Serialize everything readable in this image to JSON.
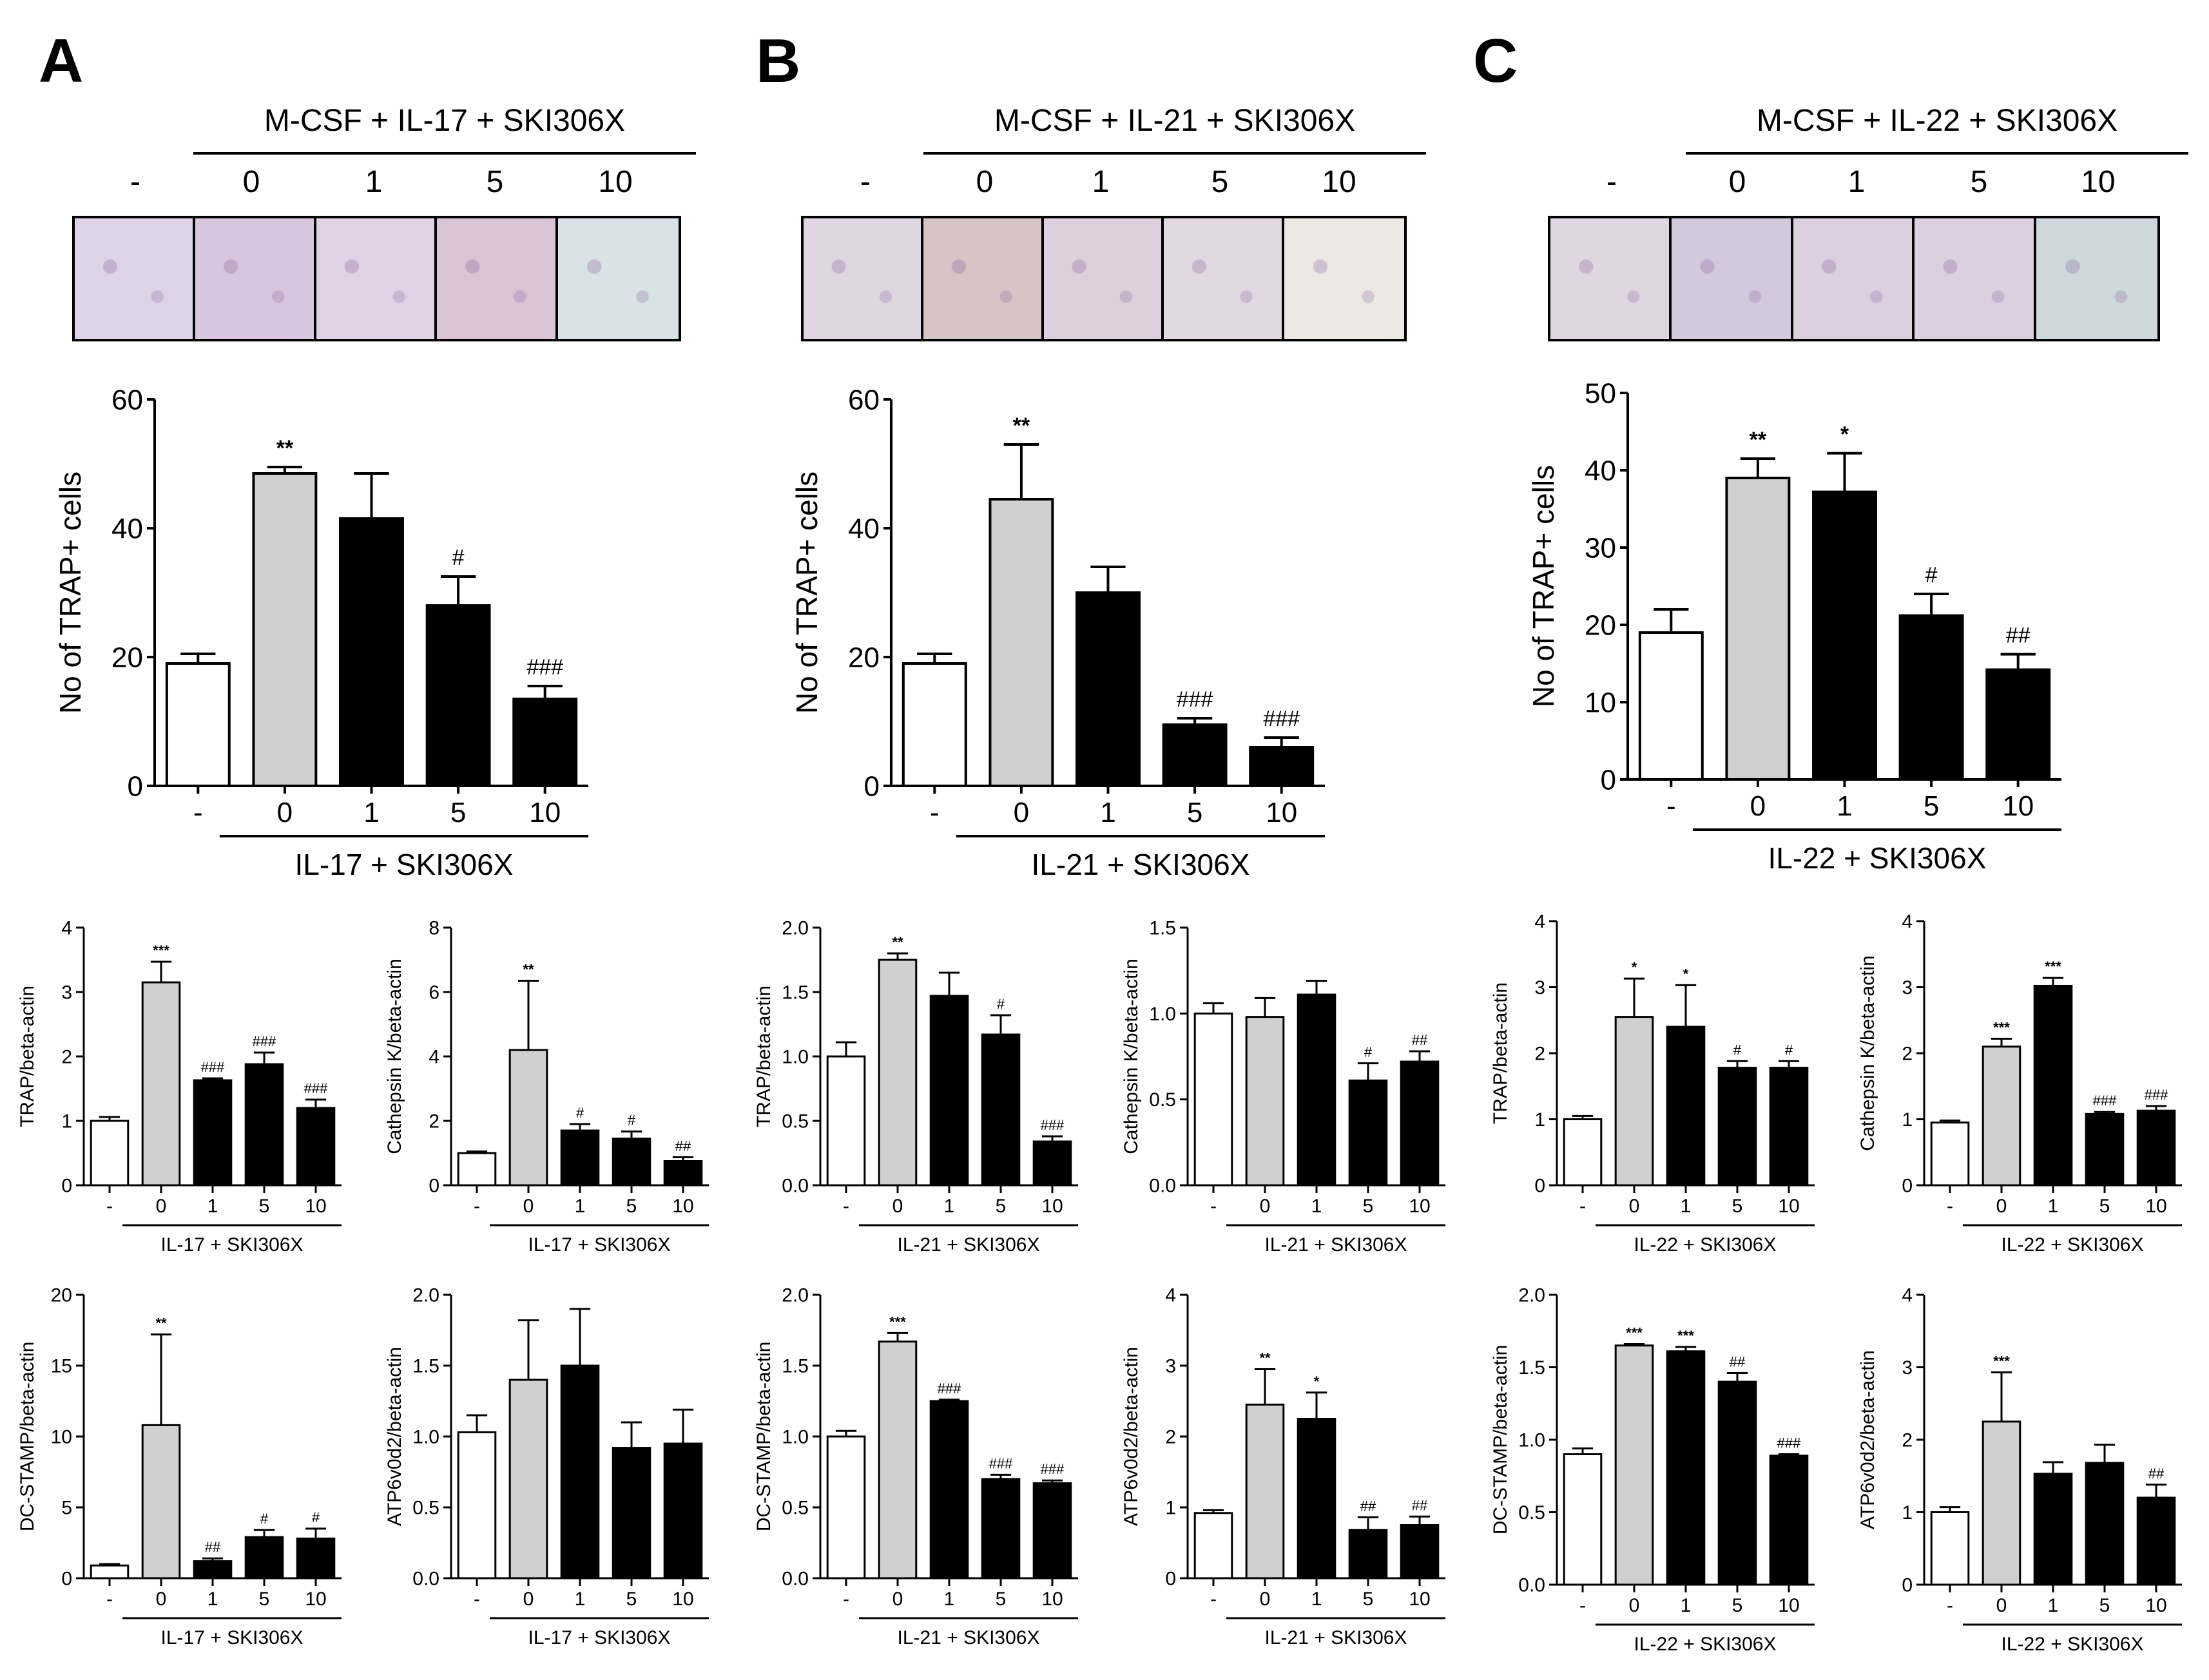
{
  "panels": [
    {
      "label": "A",
      "treatment_title": "M-CSF + IL-17 + SKI306X",
      "dose_headers": [
        "-",
        "0",
        "1",
        "5",
        "10"
      ],
      "micrograph_tints": [
        "#ded2e6",
        "#d8c6de",
        "#e0d2e4",
        "#d9c4d6",
        "#d9e2e6"
      ]
    },
    {
      "label": "B",
      "treatment_title": "M-CSF + IL-21 + SKI306X",
      "dose_headers": [
        "-",
        "0",
        "1",
        "5",
        "10"
      ],
      "micrograph_tints": [
        "#e0d6e2",
        "#d6c4c6",
        "#ddd0dc",
        "#e2d8e0",
        "#ece8e4"
      ]
    },
    {
      "label": "C",
      "treatment_title": "M-CSF + IL-22 + SKI306X",
      "dose_headers": [
        "-",
        "0",
        "1",
        "5",
        "10"
      ],
      "micrograph_tints": [
        "#e0d6e2",
        "#d4c8dc",
        "#dccfe0",
        "#dccfe0",
        "#cfd8dc"
      ]
    }
  ],
  "chart_data": [
    {
      "id": "A-trap-cells",
      "panel": "A",
      "type": "bar",
      "ylabel": "No of TRAP+ cells",
      "ylim": [
        0,
        60
      ],
      "ticks": [
        "0",
        "20",
        "40",
        "60"
      ],
      "categories": [
        "-",
        "0",
        "1",
        "5",
        "10"
      ],
      "values": [
        19,
        48.5,
        41.5,
        28,
        13.5
      ],
      "errors": [
        1.5,
        1,
        7,
        4.5,
        2
      ],
      "annotations": [
        "",
        "**",
        "",
        "#",
        "###"
      ],
      "colors": [
        "white",
        "gray",
        "black",
        "black",
        "black"
      ],
      "xlabel": "IL-17 + SKI306X",
      "size": "large"
    },
    {
      "id": "B-trap-cells",
      "panel": "B",
      "type": "bar",
      "ylabel": "No of TRAP+ cells",
      "ylim": [
        0,
        60
      ],
      "ticks": [
        "0",
        "20",
        "40",
        "60"
      ],
      "categories": [
        "-",
        "0",
        "1",
        "5",
        "10"
      ],
      "values": [
        19,
        44.5,
        30,
        9.5,
        6
      ],
      "errors": [
        1.5,
        8.5,
        4,
        1,
        1.5
      ],
      "annotations": [
        "",
        "**",
        "",
        "###",
        "###"
      ],
      "colors": [
        "white",
        "gray",
        "black",
        "black",
        "black"
      ],
      "xlabel": "IL-21 + SKI306X",
      "size": "large"
    },
    {
      "id": "C-trap-cells",
      "panel": "C",
      "type": "bar",
      "ylabel": "No of TRAP+ cells",
      "ylim": [
        0,
        50
      ],
      "ticks": [
        "0",
        "10",
        "20",
        "30",
        "40",
        "50"
      ],
      "categories": [
        "-",
        "0",
        "1",
        "5",
        "10"
      ],
      "values": [
        19,
        39,
        37.2,
        21.2,
        14.2
      ],
      "errors": [
        3,
        2.5,
        5,
        2.8,
        2
      ],
      "annotations": [
        "",
        "**",
        "*",
        "#",
        "##"
      ],
      "colors": [
        "white",
        "gray",
        "black",
        "black",
        "black"
      ],
      "xlabel": "IL-22 + SKI306X",
      "size": "large"
    },
    {
      "id": "A-trap-mrna",
      "panel": "A",
      "type": "bar",
      "ylabel": "TRAP/beta-actin",
      "ylim": [
        0,
        4
      ],
      "ticks": [
        "0",
        "1",
        "2",
        "3",
        "4"
      ],
      "categories": [
        "-",
        "0",
        "1",
        "5",
        "10"
      ],
      "values": [
        1,
        3.15,
        1.63,
        1.88,
        1.2
      ],
      "errors": [
        0.06,
        0.32,
        0.03,
        0.18,
        0.13
      ],
      "annotations": [
        "",
        "***",
        "###",
        "###",
        "###"
      ],
      "colors": [
        "white",
        "gray",
        "black",
        "black",
        "black"
      ],
      "xlabel": "IL-17 + SKI306X",
      "size": "small"
    },
    {
      "id": "A-cathepsin",
      "panel": "A",
      "type": "bar",
      "ylabel": "Cathepsin K/beta-actin",
      "ylim": [
        0,
        8
      ],
      "ticks": [
        "0",
        "2",
        "4",
        "6",
        "8"
      ],
      "categories": [
        "-",
        "0",
        "1",
        "5",
        "10"
      ],
      "values": [
        1,
        4.2,
        1.7,
        1.45,
        0.75
      ],
      "errors": [
        0.05,
        2.15,
        0.2,
        0.22,
        0.12
      ],
      "annotations": [
        "",
        "**",
        "#",
        "#",
        "##"
      ],
      "colors": [
        "white",
        "gray",
        "black",
        "black",
        "black"
      ],
      "xlabel": "IL-17 + SKI306X",
      "size": "small"
    },
    {
      "id": "A-dcstamp",
      "panel": "A",
      "type": "bar",
      "ylabel": "DC-STAMP/beta-actin",
      "ylim": [
        0,
        20
      ],
      "ticks": [
        "0",
        "5",
        "10",
        "15",
        "20"
      ],
      "categories": [
        "-",
        "0",
        "1",
        "5",
        "10"
      ],
      "values": [
        0.9,
        10.8,
        1.2,
        2.9,
        2.8
      ],
      "errors": [
        0.1,
        6.4,
        0.2,
        0.5,
        0.7
      ],
      "annotations": [
        "",
        "**",
        "##",
        "#",
        "#"
      ],
      "colors": [
        "white",
        "gray",
        "black",
        "black",
        "black"
      ],
      "xlabel": "IL-17 + SKI306X",
      "size": "small"
    },
    {
      "id": "A-atp6v0d2",
      "panel": "A",
      "type": "bar",
      "ylabel": "ATP6v0d2/beta-actin",
      "ylim": [
        0,
        2.0
      ],
      "ticks": [
        "0.0",
        "0.5",
        "1.0",
        "1.5",
        "2.0"
      ],
      "categories": [
        "-",
        "0",
        "1",
        "5",
        "10"
      ],
      "values": [
        1.03,
        1.4,
        1.5,
        0.92,
        0.95
      ],
      "errors": [
        0.12,
        0.42,
        0.4,
        0.18,
        0.24
      ],
      "annotations": [
        "",
        "",
        "",
        "",
        ""
      ],
      "colors": [
        "white",
        "gray",
        "black",
        "black",
        "black"
      ],
      "xlabel": "IL-17 + SKI306X",
      "size": "small"
    },
    {
      "id": "B-trap-mrna",
      "panel": "B",
      "type": "bar",
      "ylabel": "TRAP/beta-actin",
      "ylim": [
        0,
        2.0
      ],
      "ticks": [
        "0.0",
        "0.5",
        "1.0",
        "1.5",
        "2.0"
      ],
      "categories": [
        "-",
        "0",
        "1",
        "5",
        "10"
      ],
      "values": [
        1,
        1.75,
        1.47,
        1.17,
        0.34
      ],
      "errors": [
        0.11,
        0.05,
        0.18,
        0.15,
        0.04
      ],
      "annotations": [
        "",
        "**",
        "",
        "#",
        "###"
      ],
      "colors": [
        "white",
        "gray",
        "black",
        "black",
        "black"
      ],
      "xlabel": "IL-21 + SKI306X",
      "size": "small"
    },
    {
      "id": "B-cathepsin",
      "panel": "B",
      "type": "bar",
      "ylabel": "Cathepsin K/beta-actin",
      "ylim": [
        0,
        1.5
      ],
      "ticks": [
        "0.0",
        "0.5",
        "1.0",
        "1.5"
      ],
      "categories": [
        "-",
        "0",
        "1",
        "5",
        "10"
      ],
      "values": [
        1,
        0.98,
        1.11,
        0.61,
        0.72
      ],
      "errors": [
        0.06,
        0.11,
        0.08,
        0.1,
        0.06
      ],
      "annotations": [
        "",
        "",
        "",
        "#",
        "##"
      ],
      "colors": [
        "white",
        "gray",
        "black",
        "black",
        "black"
      ],
      "xlabel": "IL-21 + SKI306X",
      "size": "small"
    },
    {
      "id": "B-dcstamp",
      "panel": "B",
      "type": "bar",
      "ylabel": "DC-STAMP/beta-actin",
      "ylim": [
        0,
        2.0
      ],
      "ticks": [
        "0.0",
        "0.5",
        "1.0",
        "1.5",
        "2.0"
      ],
      "categories": [
        "-",
        "0",
        "1",
        "5",
        "10"
      ],
      "values": [
        1,
        1.67,
        1.25,
        0.7,
        0.67
      ],
      "errors": [
        0.04,
        0.06,
        0.01,
        0.03,
        0.02
      ],
      "annotations": [
        "",
        "***",
        "###",
        "###",
        "###"
      ],
      "colors": [
        "white",
        "gray",
        "black",
        "black",
        "black"
      ],
      "xlabel": "IL-21 + SKI306X",
      "size": "small"
    },
    {
      "id": "B-atp6v0d2",
      "panel": "B",
      "type": "bar",
      "ylabel": "ATP6v0d2/beta-actin",
      "ylim": [
        0,
        4
      ],
      "ticks": [
        "0",
        "1",
        "2",
        "3",
        "4"
      ],
      "categories": [
        "-",
        "0",
        "1",
        "5",
        "10"
      ],
      "values": [
        0.92,
        2.45,
        2.25,
        0.68,
        0.75
      ],
      "errors": [
        0.04,
        0.5,
        0.37,
        0.18,
        0.12
      ],
      "annotations": [
        "",
        "**",
        "*",
        "##",
        "##"
      ],
      "colors": [
        "white",
        "gray",
        "black",
        "black",
        "black"
      ],
      "xlabel": "IL-21 + SKI306X",
      "size": "small"
    },
    {
      "id": "C-trap-mrna",
      "panel": "C",
      "type": "bar",
      "ylabel": "TRAP/beta-actin",
      "ylim": [
        0,
        4
      ],
      "ticks": [
        "0",
        "1",
        "2",
        "3",
        "4"
      ],
      "categories": [
        "-",
        "0",
        "1",
        "5",
        "10"
      ],
      "values": [
        1,
        2.55,
        2.4,
        1.78,
        1.78
      ],
      "errors": [
        0.05,
        0.58,
        0.63,
        0.1,
        0.1
      ],
      "annotations": [
        "",
        "*",
        "*",
        "#",
        "#"
      ],
      "colors": [
        "white",
        "gray",
        "black",
        "black",
        "black"
      ],
      "xlabel": "IL-22 + SKI306X",
      "size": "small"
    },
    {
      "id": "C-cathepsin",
      "panel": "C",
      "type": "bar",
      "ylabel": "Cathepsin K/beta-actin",
      "ylim": [
        0,
        4
      ],
      "ticks": [
        "0",
        "1",
        "2",
        "3",
        "4"
      ],
      "categories": [
        "-",
        "0",
        "1",
        "5",
        "10"
      ],
      "values": [
        0.95,
        2.1,
        3.02,
        1.08,
        1.13
      ],
      "errors": [
        0.03,
        0.12,
        0.12,
        0.03,
        0.07
      ],
      "annotations": [
        "",
        "***",
        "***",
        "###",
        "###"
      ],
      "colors": [
        "white",
        "gray",
        "black",
        "black",
        "black"
      ],
      "xlabel": "IL-22 + SKI306X",
      "size": "small"
    },
    {
      "id": "C-dcstamp",
      "panel": "C",
      "type": "bar",
      "ylabel": "DC-STAMP/beta-actin",
      "ylim": [
        0,
        2.0
      ],
      "ticks": [
        "0.0",
        "0.5",
        "1.0",
        "1.5",
        "2.0"
      ],
      "categories": [
        "-",
        "0",
        "1",
        "5",
        "10"
      ],
      "values": [
        0.9,
        1.65,
        1.61,
        1.4,
        0.89
      ],
      "errors": [
        0.04,
        0.01,
        0.03,
        0.06,
        0.01
      ],
      "annotations": [
        "",
        "***",
        "***",
        "##",
        "###"
      ],
      "colors": [
        "white",
        "gray",
        "black",
        "black",
        "black"
      ],
      "xlabel": "IL-22 + SKI306X",
      "size": "small"
    },
    {
      "id": "C-atp6v0d2",
      "panel": "C",
      "type": "bar",
      "ylabel": "ATP6v0d2/beta-actin",
      "ylim": [
        0,
        4
      ],
      "ticks": [
        "0",
        "1",
        "2",
        "3",
        "4"
      ],
      "categories": [
        "-",
        "0",
        "1",
        "5",
        "10"
      ],
      "values": [
        1,
        2.25,
        1.53,
        1.68,
        1.2
      ],
      "errors": [
        0.07,
        0.68,
        0.16,
        0.25,
        0.18
      ],
      "annotations": [
        "",
        "***",
        "",
        "",
        "##"
      ],
      "colors": [
        "white",
        "gray",
        "black",
        "black",
        "black"
      ],
      "xlabel": "IL-22 + SKI306X",
      "size": "small"
    }
  ]
}
